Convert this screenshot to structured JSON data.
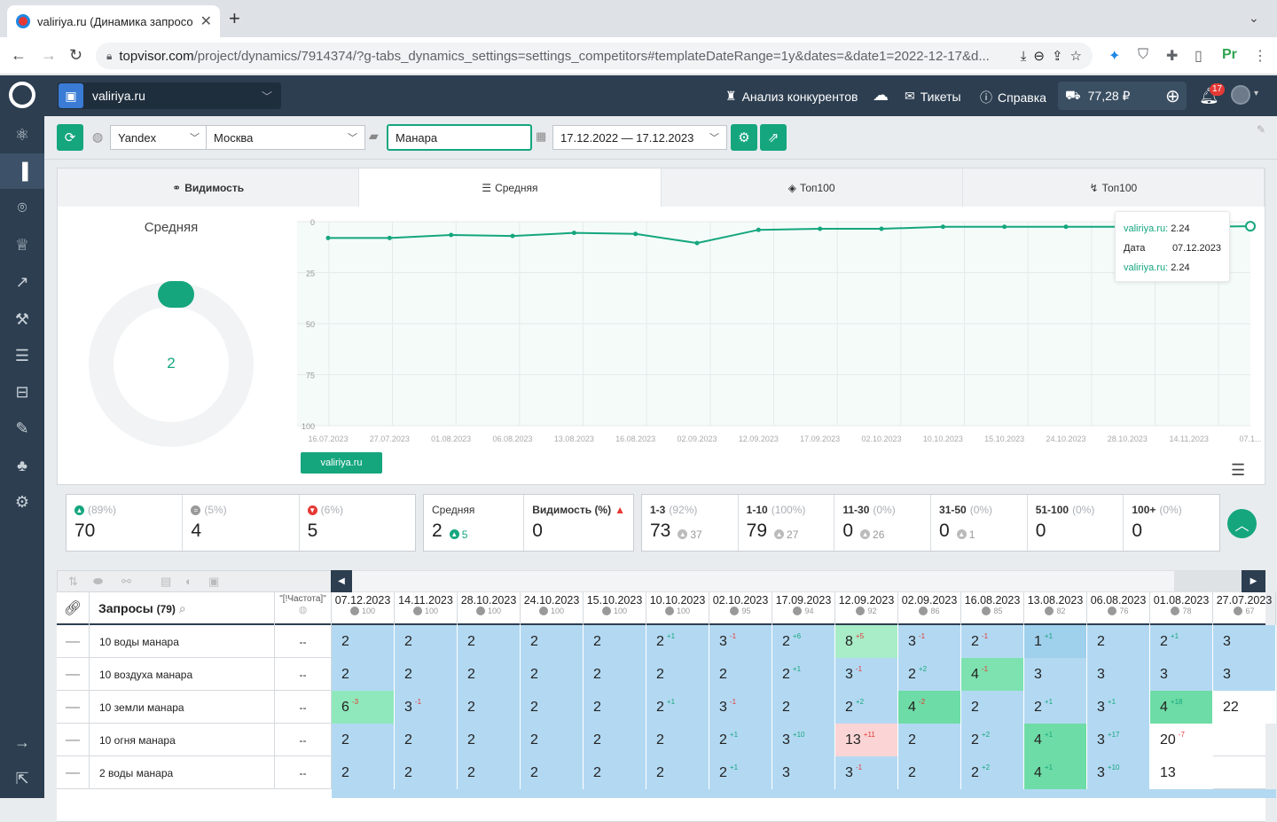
{
  "browser": {
    "tab_title": "valiriya.ru (Динамика запросо",
    "url_host": "topvisor.com",
    "url_path": "/project/dynamics/7914374/?g-tabs_dynamics_settings=settings_competitors#templateDateRange=1y&dates=&date1=2022-12-17&d..."
  },
  "header": {
    "project": "valiriya.ru",
    "competitors": "Анализ конкурентов",
    "tickets": "Тикеты",
    "help": "Справка",
    "balance": "77,28 ₽",
    "notifications": "17"
  },
  "toolbar": {
    "engine": "Yandex",
    "region": "Москва",
    "search_value": "Манара",
    "date_range": "17.12.2022 — 17.12.2023"
  },
  "tabs": [
    "Видимость",
    "Средняя",
    "Топ100",
    "Топ100"
  ],
  "donut": {
    "title": "Средняя",
    "value": "2"
  },
  "legend": "valiriya.ru",
  "tooltip": {
    "site1": "valiriya.ru:",
    "val1": "2.24",
    "date_label": "Дата",
    "date": "07.12.2023",
    "site2": "valiriya.ru:",
    "val2": "2.24"
  },
  "chart_data": {
    "type": "line",
    "title": "",
    "x": [
      "16.07.2023",
      "27.07.2023",
      "01.08.2023",
      "06.08.2023",
      "13.08.2023",
      "16.08.2023",
      "02.09.2023",
      "12.09.2023",
      "17.09.2023",
      "02.10.2023",
      "10.10.2023",
      "15.10.2023",
      "24.10.2023",
      "28.10.2023",
      "14.11.2023",
      "07.12.2023"
    ],
    "x_tick_labels": [
      "16.07.2023",
      "27.07.2023",
      "01.08.2023",
      "06.08.2023",
      "13.08.2023",
      "16.08.2023",
      "02.09.2023",
      "12.09.2023",
      "17.09.2023",
      "02.10.2023",
      "10.10.2023",
      "15.10.2023",
      "24.10.2023",
      "28.10.2023",
      "14.11.2023",
      "07.1..."
    ],
    "series": [
      {
        "name": "valiriya.ru",
        "color": "#15a67e",
        "values": [
          8,
          8,
          6.5,
          7,
          5.5,
          6,
          10.5,
          4,
          3.5,
          3.5,
          2.5,
          2.5,
          2.5,
          2.5,
          2.5,
          2.24
        ]
      }
    ],
    "y_ticks": [
      0,
      25,
      50,
      75,
      100
    ],
    "ylim": [
      100,
      0
    ],
    "y_inverted": true,
    "grid": true
  },
  "stats": {
    "g1": [
      {
        "pct": "(89%)",
        "val": "70",
        "icon": "up",
        "color": "#15a67e"
      },
      {
        "pct": "(5%)",
        "val": "4",
        "icon": "eq",
        "color": "#999"
      },
      {
        "pct": "(6%)",
        "val": "5",
        "icon": "down",
        "color": "#e53935"
      }
    ],
    "g2": [
      {
        "lbl": "Средняя",
        "val": "2",
        "sub": "5"
      },
      {
        "lbl": "Видимость (%)",
        "val": "0"
      }
    ],
    "g3": [
      {
        "lbl": "1-3",
        "pct": "(92%)",
        "val": "73",
        "sub": "37"
      },
      {
        "lbl": "1-10",
        "pct": "(100%)",
        "val": "79",
        "sub": "27"
      },
      {
        "lbl": "11-30",
        "pct": "(0%)",
        "val": "0",
        "sub": "26"
      },
      {
        "lbl": "31-50",
        "pct": "(0%)",
        "val": "0",
        "sub": "1"
      },
      {
        "lbl": "51-100",
        "pct": "(0%)",
        "val": "0",
        "sub": ""
      },
      {
        "lbl": "100+",
        "pct": "(0%)",
        "val": "0",
        "sub": ""
      }
    ]
  },
  "table": {
    "queries_header": "Запросы",
    "queries_count": "(79)",
    "freq_header": "\"[!Частота]\"",
    "dates": [
      [
        "07.12.2023",
        "100"
      ],
      [
        "14.11.2023",
        "100"
      ],
      [
        "28.10.2023",
        "100"
      ],
      [
        "24.10.2023",
        "100"
      ],
      [
        "15.10.2023",
        "100"
      ],
      [
        "10.10.2023",
        "100"
      ],
      [
        "02.10.2023",
        "95"
      ],
      [
        "17.09.2023",
        "94"
      ],
      [
        "12.09.2023",
        "92"
      ],
      [
        "02.09.2023",
        "86"
      ],
      [
        "16.08.2023",
        "85"
      ],
      [
        "13.08.2023",
        "82"
      ],
      [
        "06.08.2023",
        "76"
      ],
      [
        "01.08.2023",
        "78"
      ],
      [
        "27.07.2023",
        "67"
      ]
    ],
    "rows": [
      {
        "q": "10 воды манара",
        "f": "--",
        "c": [
          [
            "2",
            "",
            ""
          ],
          [
            "2",
            "",
            ""
          ],
          [
            "2",
            "",
            ""
          ],
          [
            "2",
            "",
            ""
          ],
          [
            "2",
            "",
            ""
          ],
          [
            "2",
            "+1",
            "u"
          ],
          [
            "3",
            "-1",
            "d"
          ],
          [
            "2",
            "+6",
            "u"
          ],
          [
            "8",
            "+5",
            "d",
            "#a8ecc8"
          ],
          [
            "3",
            "-1",
            "d"
          ],
          [
            "2",
            "-1",
            "d"
          ],
          [
            "1",
            "+1",
            "u",
            "#9fd0ec"
          ],
          [
            "2",
            "",
            ""
          ],
          [
            "2",
            "+1",
            "u"
          ],
          [
            "3",
            "",
            ""
          ]
        ]
      },
      {
        "q": "10 воздуха манара",
        "f": "--",
        "c": [
          [
            "2",
            "",
            ""
          ],
          [
            "2",
            "",
            ""
          ],
          [
            "2",
            "",
            ""
          ],
          [
            "2",
            "",
            ""
          ],
          [
            "2",
            "",
            ""
          ],
          [
            "2",
            "",
            ""
          ],
          [
            "2",
            "",
            ""
          ],
          [
            "2",
            "+1",
            "u"
          ],
          [
            "3",
            "-1",
            "d"
          ],
          [
            "2",
            "+2",
            "u"
          ],
          [
            "4",
            "-1",
            "d",
            "#7ee2b0"
          ],
          [
            "3",
            "",
            ""
          ],
          [
            "3",
            "",
            ""
          ],
          [
            "3",
            "",
            ""
          ],
          [
            "3",
            "",
            ""
          ]
        ]
      },
      {
        "q": "10 земли манара",
        "f": "--",
        "c": [
          [
            "6",
            "-3",
            "d",
            "#8ee8bb"
          ],
          [
            "3",
            "-1",
            "d"
          ],
          [
            "2",
            "",
            ""
          ],
          [
            "2",
            "",
            ""
          ],
          [
            "2",
            "",
            ""
          ],
          [
            "2",
            "+1",
            "u"
          ],
          [
            "3",
            "-1",
            "d"
          ],
          [
            "2",
            "",
            ""
          ],
          [
            "2",
            "+2",
            "u"
          ],
          [
            "4",
            "-2",
            "d",
            "#6edca6"
          ],
          [
            "2",
            "",
            ""
          ],
          [
            "2",
            "+1",
            "u"
          ],
          [
            "3",
            "+1",
            "u"
          ],
          [
            "4",
            "+18",
            "u",
            "#6edca6"
          ],
          [
            "22",
            "",
            "",
            "#ffffff"
          ]
        ]
      },
      {
        "q": "10 огня манара",
        "f": "--",
        "c": [
          [
            "2",
            "",
            ""
          ],
          [
            "2",
            "",
            ""
          ],
          [
            "2",
            "",
            ""
          ],
          [
            "2",
            "",
            ""
          ],
          [
            "2",
            "",
            ""
          ],
          [
            "2",
            "",
            ""
          ],
          [
            "2",
            "+1",
            "u"
          ],
          [
            "3",
            "+10",
            "u"
          ],
          [
            "13",
            "+11",
            "d",
            "#fbd5d5"
          ],
          [
            "2",
            "",
            ""
          ],
          [
            "2",
            "+2",
            "u"
          ],
          [
            "4",
            "+1",
            "u",
            "#6edca6"
          ],
          [
            "3",
            "+17",
            "u"
          ],
          [
            "20",
            "-7",
            "d",
            "#ffffff"
          ],
          [
            "",
            "",
            ""
          ]
        ]
      },
      {
        "q": "2 воды манара",
        "f": "--",
        "c": [
          [
            "2",
            "",
            ""
          ],
          [
            "2",
            "",
            ""
          ],
          [
            "2",
            "",
            ""
          ],
          [
            "2",
            "",
            ""
          ],
          [
            "2",
            "",
            ""
          ],
          [
            "2",
            "",
            ""
          ],
          [
            "2",
            "+1",
            "u"
          ],
          [
            "3",
            "",
            ""
          ],
          [
            "3",
            "-1",
            "d"
          ],
          [
            "2",
            "",
            ""
          ],
          [
            "2",
            "+2",
            "u"
          ],
          [
            "4",
            "+1",
            "u",
            "#6edca6"
          ],
          [
            "3",
            "+10",
            "u"
          ],
          [
            "13",
            "",
            "",
            "#ffffff"
          ],
          [
            "",
            "",
            ""
          ]
        ]
      }
    ]
  }
}
